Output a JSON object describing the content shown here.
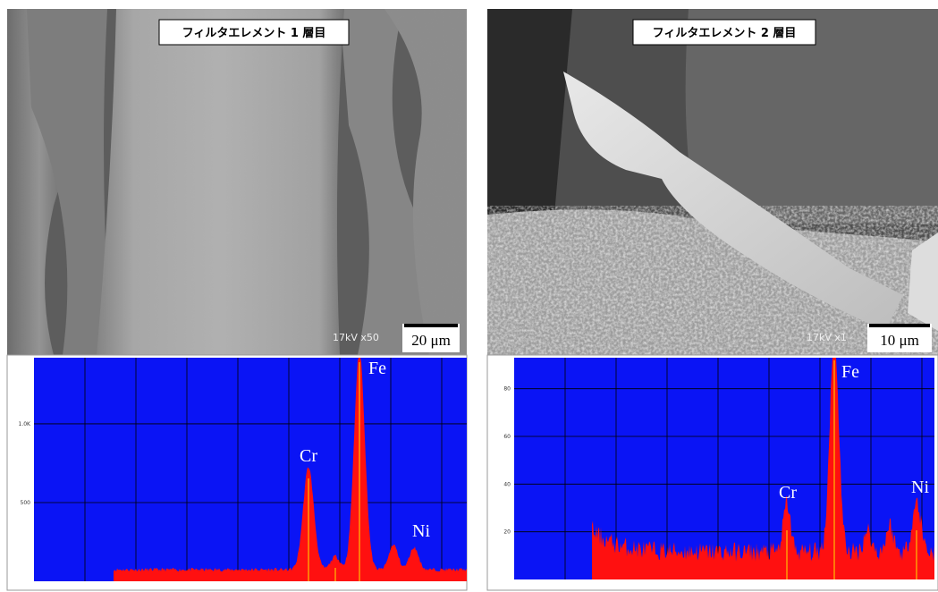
{
  "panels": [
    {
      "title": "フィルタエレメント 1 層目",
      "scale_bar": "20 μm",
      "sem_info": "17kV x50",
      "spectrum": {
        "ylim": [
          0,
          1420
        ],
        "yticks": [
          500,
          {
            "value": 1000,
            "label": "1.0K"
          }
        ],
        "peaks": [
          "Cr",
          "Fe",
          "Ni"
        ]
      }
    },
    {
      "title": "フィルタエレメント 2 層目",
      "scale_bar": "10 μm",
      "sem_info": "17kV x1",
      "spectrum": {
        "ylim": [
          0,
          93
        ],
        "yticks": [
          20,
          40,
          60,
          80
        ],
        "peaks": [
          "Cr",
          "Fe",
          "Ni"
        ]
      }
    }
  ]
}
